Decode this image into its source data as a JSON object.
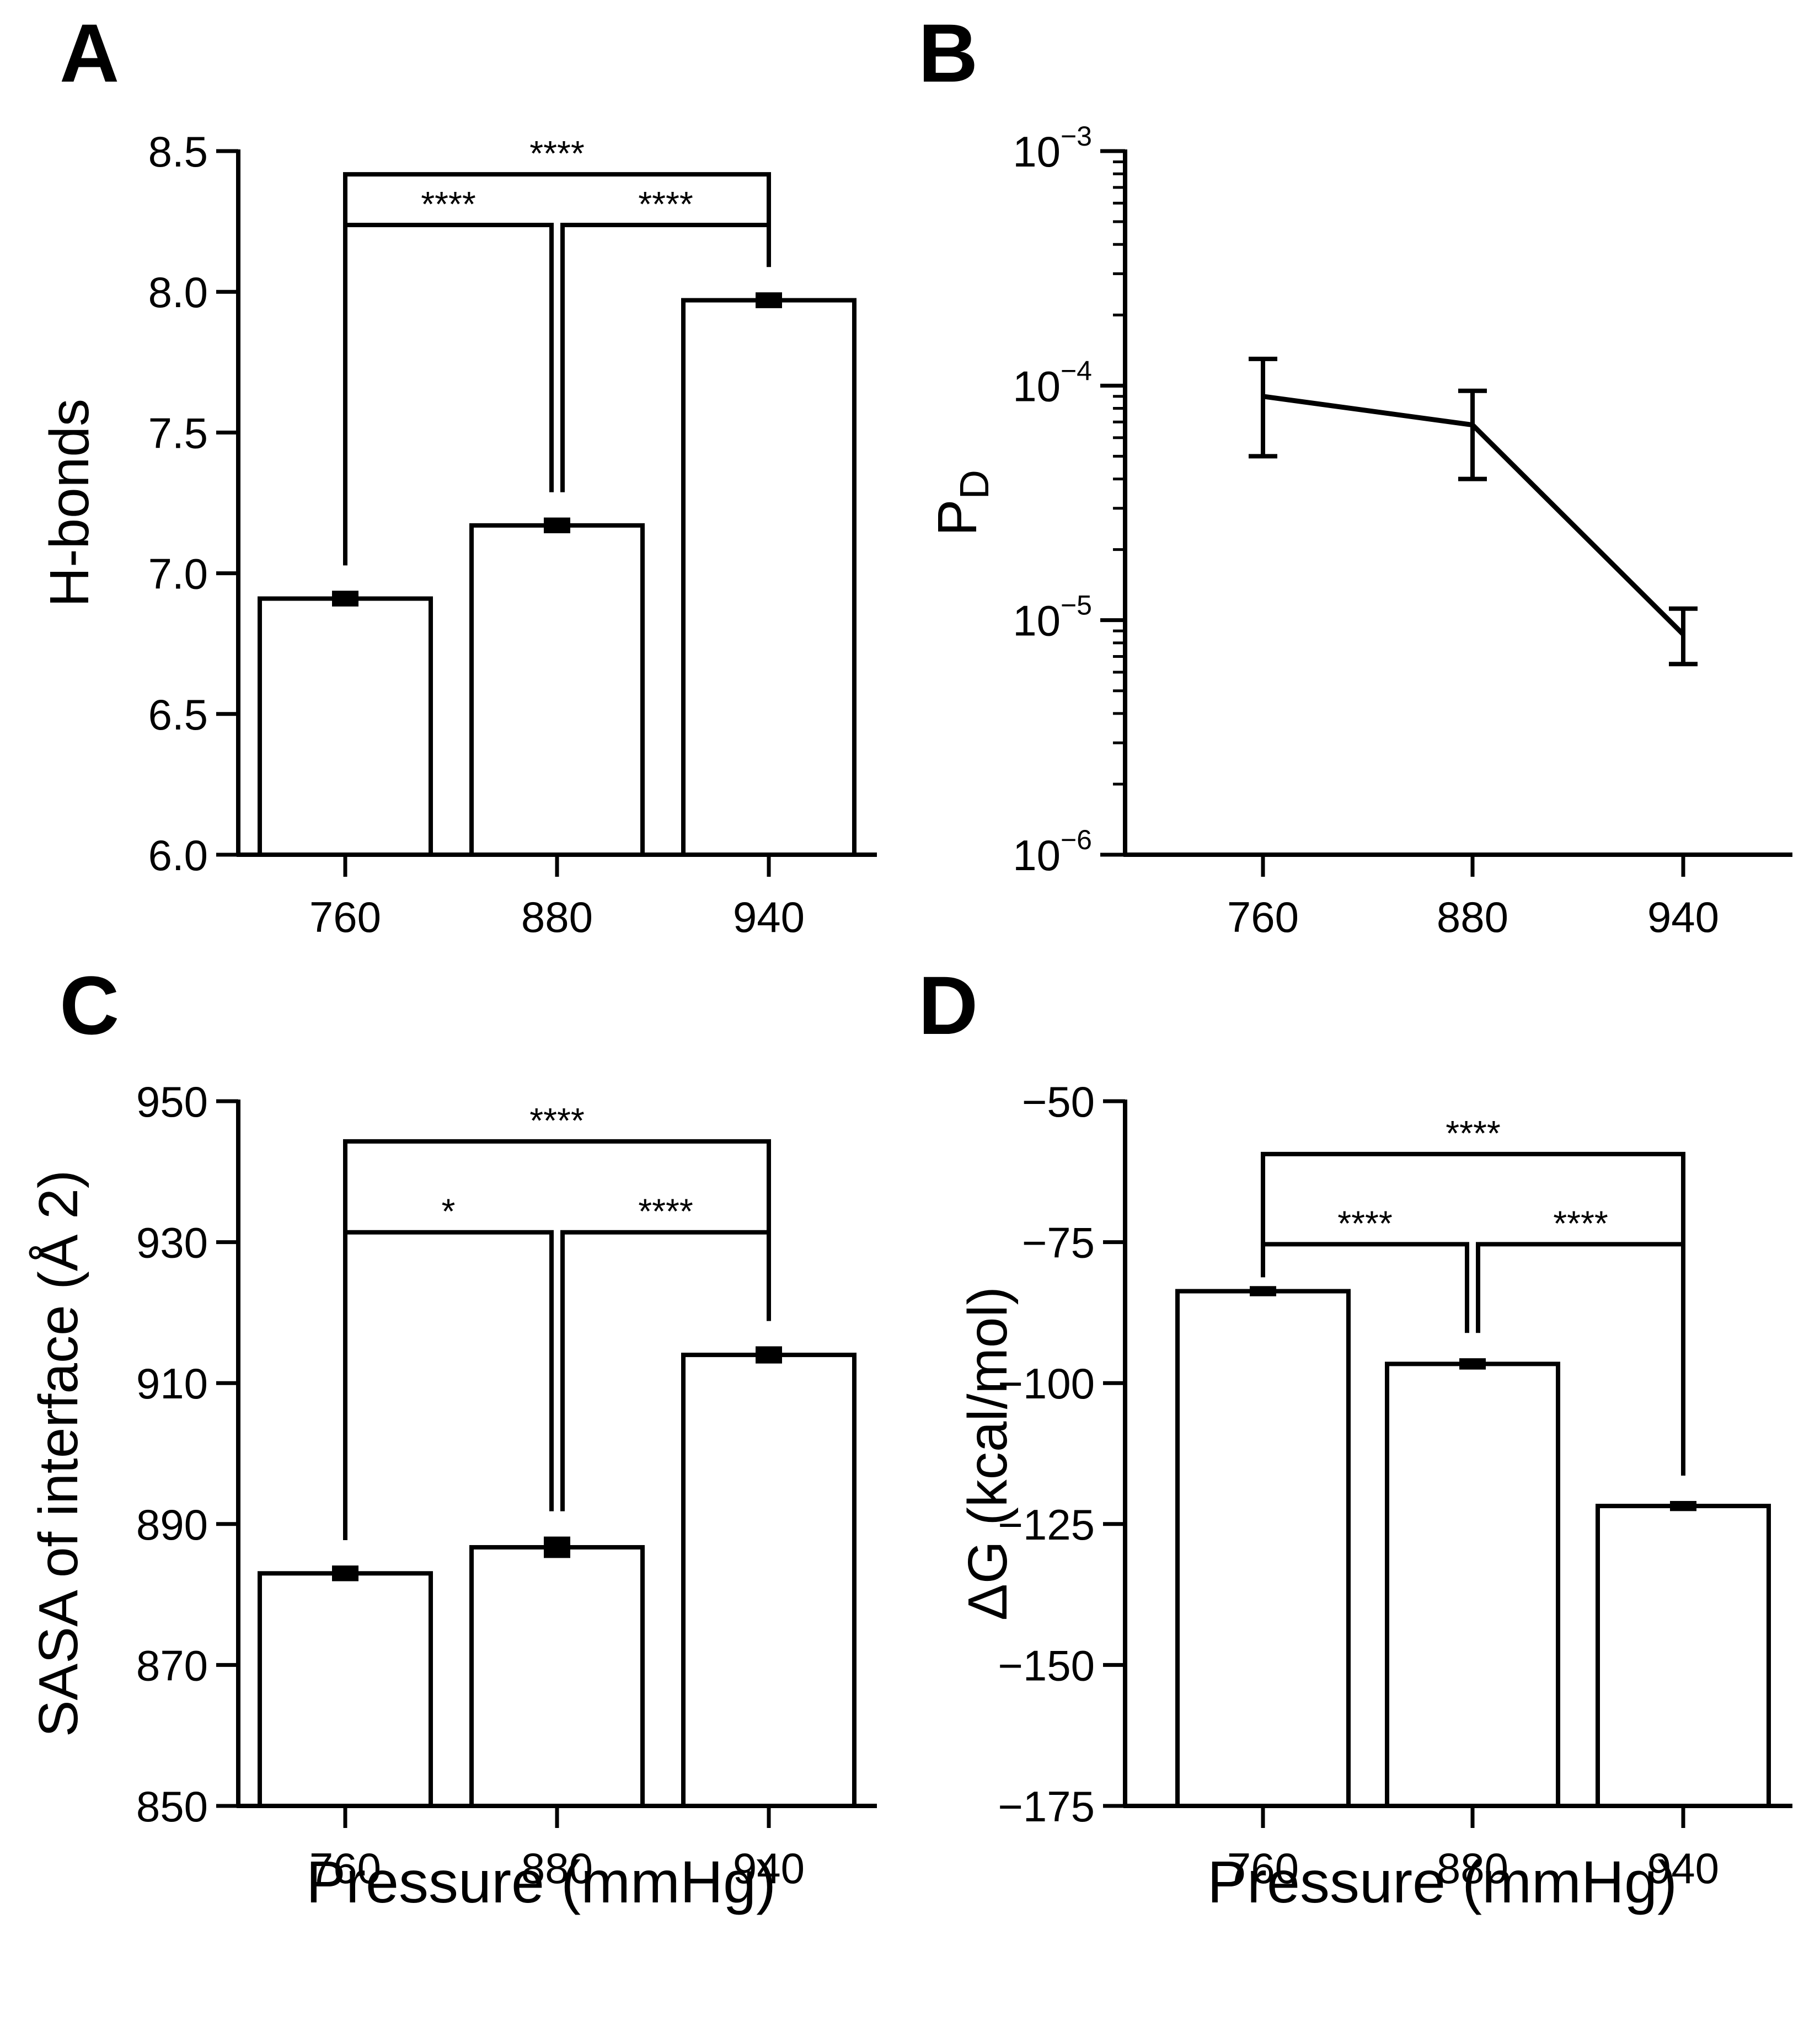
{
  "figure": {
    "x_title": "Pressure (mmHg)",
    "bar_color": "#ffffff",
    "line_color": "#000000"
  },
  "chart_data": [
    {
      "panel": "A",
      "type": "bar",
      "categories": [
        "760",
        "880",
        "940"
      ],
      "values": [
        6.91,
        7.17,
        7.97
      ],
      "errors": [
        0.02,
        0.02,
        0.02
      ],
      "ylabel": "H-bonds",
      "ylim": [
        6.0,
        8.5
      ],
      "yticks": [
        6.0,
        6.5,
        7.0,
        7.5,
        8.0,
        8.5
      ],
      "ytick_labels": [
        "6.0",
        "6.5",
        "7.0",
        "7.5",
        "8.0",
        "8.5"
      ],
      "significance": [
        {
          "from": "760",
          "to": "880",
          "label": "****"
        },
        {
          "from": "880",
          "to": "940",
          "label": "****"
        },
        {
          "from": "760",
          "to": "940",
          "label": "****"
        }
      ]
    },
    {
      "panel": "B",
      "type": "line",
      "scale": "log",
      "categories": [
        "760",
        "880",
        "940"
      ],
      "values": [
        9e-05,
        6.8e-05,
        8.7e-06
      ],
      "err_low": [
        5e-05,
        4e-05,
        6.5e-06
      ],
      "err_high": [
        0.00013,
        9.5e-05,
        1.12e-05
      ],
      "ylabel_main": "P",
      "ylabel_sub": "D",
      "ylim": [
        1e-06,
        0.001
      ],
      "ytick_base": "10",
      "ytick_exponents": [
        "−6",
        "−5",
        "−4",
        "−3"
      ]
    },
    {
      "panel": "C",
      "type": "bar",
      "categories": [
        "760",
        "880",
        "940"
      ],
      "values": [
        883.0,
        886.7,
        914.0
      ],
      "errors": [
        0.8,
        1.2,
        0.9
      ],
      "ylabel": "SASA of interface (Å 2)",
      "ylim": [
        850,
        950
      ],
      "yticks": [
        850,
        870,
        890,
        910,
        930,
        950
      ],
      "ytick_labels": [
        "850",
        "870",
        "890",
        "910",
        "930",
        "950"
      ],
      "significance": [
        {
          "from": "760",
          "to": "880",
          "label": "*"
        },
        {
          "from": "880",
          "to": "940",
          "label": "****"
        },
        {
          "from": "760",
          "to": "940",
          "label": "****"
        }
      ]
    },
    {
      "panel": "D",
      "type": "bar",
      "categories": [
        "760",
        "880",
        "940"
      ],
      "values": [
        -83.7,
        -96.6,
        -121.8
      ],
      "errors": [
        0.5,
        0.6,
        0.5
      ],
      "ylabel": "ΔG (kcal/mol)",
      "ylim": [
        -175,
        -50
      ],
      "yticks": [
        -175,
        -150,
        -125,
        -100,
        -75,
        -50
      ],
      "ytick_labels": [
        "−175",
        "−150",
        "−125",
        "−100",
        "−75",
        "−50"
      ],
      "significance": [
        {
          "from": "760",
          "to": "880",
          "label": "****"
        },
        {
          "from": "880",
          "to": "940",
          "label": "****"
        },
        {
          "from": "760",
          "to": "940",
          "label": "****"
        }
      ]
    }
  ]
}
